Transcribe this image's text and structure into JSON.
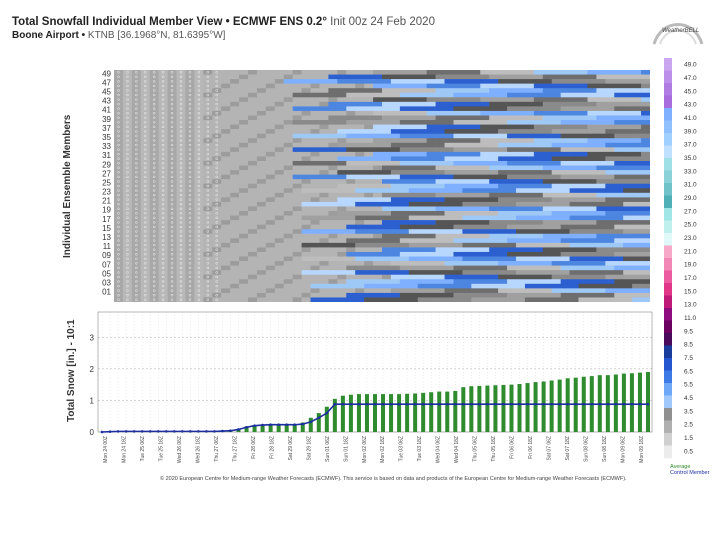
{
  "header": {
    "title_bold": "Total Snowfall Individual Member View • ECMWF ENS 0.2°",
    "title_run": "Init 00z 24 Feb 2020",
    "station": "Boone Airport •",
    "station_id": "KTNB [36.1968°N, 81.6395°W]"
  },
  "logo_text": "WeatherBELL",
  "footer": "© 2020 European Centre for Medium-range Weather Forecasts (ECMWF). This service is based on data and products of the European Centre for Medium-range Weather Forecasts (ECMWF).",
  "legend": {
    "average": "Average",
    "control": "Control Member"
  },
  "colors": {
    "bar": "#2e8b2e",
    "line": "#1c2fa0",
    "heatmap_bg": "#c8c8c8"
  },
  "chart_data": [
    {
      "type": "heatmap",
      "ylabel": "Individual Ensemble Members",
      "members_axis_labels": [
        "49",
        "47",
        "45",
        "43",
        "41",
        "39",
        "37",
        "35",
        "33",
        "31",
        "29",
        "27",
        "25",
        "23",
        "21",
        "19",
        "17",
        "15",
        "13",
        "11",
        "09",
        "07",
        "05",
        "03",
        "01"
      ],
      "colorbar_ticks": [
        "49.0",
        "47.0",
        "45.0",
        "43.0",
        "41.0",
        "39.0",
        "37.0",
        "35.0",
        "33.0",
        "31.0",
        "29.0",
        "27.0",
        "25.0",
        "23.0",
        "21.0",
        "19.0",
        "17.0",
        "15.0",
        "13.0",
        "11.0",
        "9.5",
        "8.5",
        "7.5",
        "6.5",
        "5.5",
        "4.5",
        "3.5",
        "2.5",
        "1.5",
        "0.5"
      ],
      "colorbar_colors": [
        "#c9a6ef",
        "#bc90ea",
        "#b07ce4",
        "#a86cde",
        "#7fb0ff",
        "#90c0ff",
        "#a0d0ff",
        "#c0e0ff",
        "#9fe0e6",
        "#8ad2d8",
        "#6fc3c9",
        "#50b0b8",
        "#a0e6e6",
        "#bff0ee",
        "#e0f8f8",
        "#f7a8c8",
        "#f286b4",
        "#ec5aa0",
        "#e2368a",
        "#c01a78",
        "#8e0b80",
        "#6a0060",
        "#4b0a5c",
        "#1a3c9c",
        "#2456d0",
        "#3c7ae6",
        "#6ea8f6",
        "#a0c8fa",
        "#909090",
        "#b0b0b0",
        "#d0d0d0",
        "#ececec"
      ]
    },
    {
      "type": "bar",
      "ylabel": "Total Snow [in.] - 10:1",
      "ylim": [
        0,
        3.8
      ],
      "yticks": [
        0,
        1,
        2,
        3
      ],
      "x_ticks": [
        "Mon\n24 00Z",
        "Mon\n24 18Z",
        "Tue\n25 06Z",
        "Tue\n25 18Z",
        "Wed\n26 06Z",
        "Wed\n26 18Z",
        "Thu\n27 06Z",
        "Thu\n27 18Z",
        "Fri\n28 06Z",
        "Fri\n28 18Z",
        "Sat\n29 06Z",
        "Sat\n29 18Z",
        "Sun\n01 06Z",
        "Sun\n01 18Z",
        "Mon\n02 06Z",
        "Mon\n02 18Z",
        "Tue\n03 06Z",
        "Tue\n03 18Z",
        "Wed\n04 06Z",
        "Wed\n04 18Z",
        "Thu\n05 06Z",
        "Thu\n05 18Z",
        "Fri\n06 06Z",
        "Fri\n06 18Z",
        "Sat\n07 06Z",
        "Sat\n07 18Z",
        "Sun\n08 06Z",
        "Sun\n08 18Z",
        "Mon\n09 06Z",
        "Mon\n09 18Z"
      ],
      "series": [
        {
          "name": "Average",
          "values": [
            0,
            0.01,
            0.02,
            0.03,
            0.03,
            0.03,
            0.03,
            0.03,
            0.03,
            0.03,
            0.03,
            0.03,
            0.03,
            0.03,
            0.03,
            0.04,
            0.05,
            0.1,
            0.18,
            0.22,
            0.24,
            0.25,
            0.25,
            0.25,
            0.25,
            0.3,
            0.45,
            0.6,
            0.8,
            1.05,
            1.15,
            1.18,
            1.2,
            1.2,
            1.2,
            1.2,
            1.2,
            1.2,
            1.21,
            1.22,
            1.24,
            1.26,
            1.28,
            1.28,
            1.3,
            1.42,
            1.45,
            1.46,
            1.47,
            1.48,
            1.49,
            1.5,
            1.52,
            1.55,
            1.58,
            1.6,
            1.63,
            1.66,
            1.7,
            1.72,
            1.75,
            1.77,
            1.8,
            1.8,
            1.82,
            1.85,
            1.86,
            1.88,
            1.9
          ]
        },
        {
          "name": "Control Member",
          "values": [
            0,
            0.01,
            0.02,
            0.02,
            0.02,
            0.02,
            0.02,
            0.02,
            0.02,
            0.02,
            0.02,
            0.02,
            0.02,
            0.02,
            0.02,
            0.03,
            0.04,
            0.08,
            0.15,
            0.2,
            0.22,
            0.23,
            0.23,
            0.23,
            0.23,
            0.25,
            0.32,
            0.45,
            0.6,
            0.88,
            0.88,
            0.88,
            0.88,
            0.88,
            0.88,
            0.88,
            0.88,
            0.88,
            0.88,
            0.88,
            0.88,
            0.88,
            0.88,
            0.88,
            0.88,
            0.88,
            0.88,
            0.88,
            0.88,
            0.88,
            0.88,
            0.88,
            0.88,
            0.88,
            0.88,
            0.88,
            0.88,
            0.88,
            0.88,
            0.88,
            0.88,
            0.88,
            0.88,
            0.88,
            0.88,
            0.88,
            0.88,
            0.88,
            0.88
          ]
        }
      ]
    }
  ]
}
